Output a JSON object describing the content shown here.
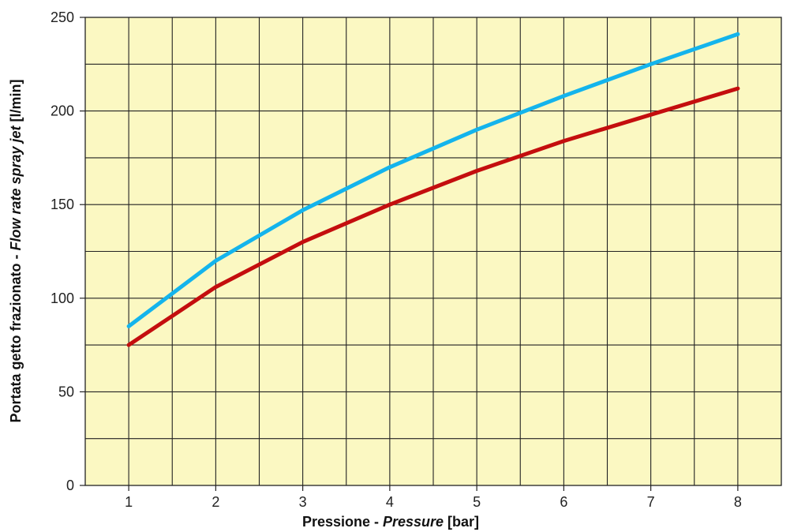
{
  "chart_data": {
    "type": "line",
    "xlabel": {
      "main": "Pressione - ",
      "italic": "Pressure",
      "unit": " [bar]"
    },
    "ylabel": {
      "main": "Portata getto frazionato - ",
      "italic": "Flow rate spray jet",
      "unit": " [l/min]"
    },
    "x": [
      1,
      2,
      3,
      4,
      5,
      6,
      7,
      8
    ],
    "x_ticks": [
      "1",
      "2",
      "3",
      "4",
      "5",
      "6",
      "7",
      "8"
    ],
    "y_ticks": [
      "0",
      "50",
      "100",
      "150",
      "200",
      "250"
    ],
    "xlim": [
      0.5,
      8.5
    ],
    "ylim": [
      0,
      250
    ],
    "grid": true,
    "background_color": "#fbf8c2",
    "series": [
      {
        "color": "#14b4ec",
        "values": [
          85,
          120,
          147,
          170,
          190,
          208,
          225,
          241
        ]
      },
      {
        "color": "#c40e0e",
        "values": [
          75,
          106,
          130,
          150,
          168,
          184,
          198,
          212
        ]
      }
    ]
  }
}
